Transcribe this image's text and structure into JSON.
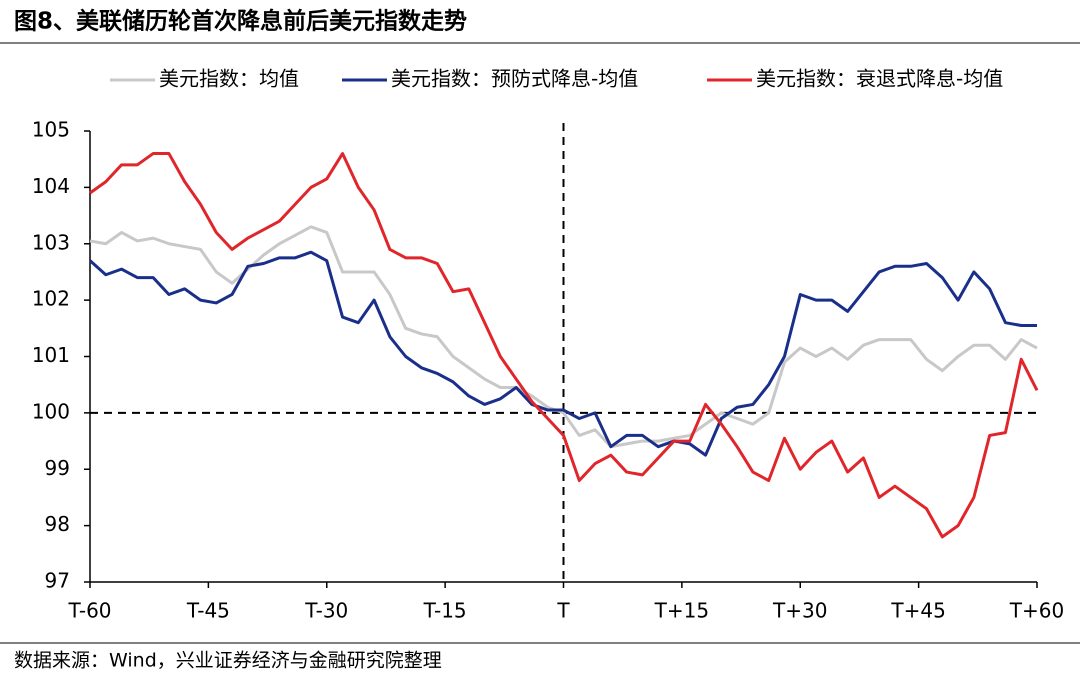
{
  "chart_data": {
    "type": "line",
    "title": "图8、美联储历轮首次降息前后美元指数走势",
    "source": "数据来源：Wind，兴业证券经济与金融研究院整理",
    "x": [
      -60,
      -58,
      -56,
      -54,
      -52,
      -50,
      -48,
      -46,
      -44,
      -42,
      -40,
      -38,
      -36,
      -34,
      -32,
      -30,
      -28,
      -26,
      -24,
      -22,
      -20,
      -18,
      -16,
      -14,
      -12,
      -10,
      -8,
      -6,
      -4,
      -2,
      0,
      2,
      4,
      6,
      8,
      10,
      12,
      14,
      16,
      18,
      20,
      22,
      24,
      26,
      28,
      30,
      32,
      34,
      36,
      38,
      40,
      42,
      44,
      46,
      48,
      50,
      52,
      54,
      56,
      58,
      60
    ],
    "series": [
      {
        "name": "美元指数：均值",
        "color": "#c8c8c8",
        "values": [
          103.05,
          103.0,
          103.2,
          103.05,
          103.1,
          103.0,
          102.95,
          102.9,
          102.5,
          102.3,
          102.55,
          102.8,
          103.0,
          103.15,
          103.3,
          103.2,
          102.5,
          102.5,
          102.5,
          102.1,
          101.5,
          101.4,
          101.35,
          101.0,
          100.8,
          100.6,
          100.45,
          100.45,
          100.3,
          100.1,
          100.0,
          99.6,
          99.7,
          99.4,
          99.45,
          99.5,
          99.5,
          99.55,
          99.6,
          99.8,
          100.0,
          99.9,
          99.8,
          100.0,
          100.9,
          101.15,
          101.0,
          101.15,
          100.95,
          101.2,
          101.3,
          101.3,
          101.3,
          100.95,
          100.75,
          101.0,
          101.2,
          101.2,
          100.95,
          101.3,
          101.15
        ]
      },
      {
        "name": "美元指数：预防式降息-均值",
        "color": "#1a2f8a",
        "values": [
          102.7,
          102.45,
          102.55,
          102.4,
          102.4,
          102.1,
          102.2,
          102.0,
          101.95,
          102.1,
          102.6,
          102.65,
          102.75,
          102.75,
          102.85,
          102.7,
          101.7,
          101.6,
          102.0,
          101.35,
          101.0,
          100.8,
          100.7,
          100.55,
          100.3,
          100.15,
          100.25,
          100.45,
          100.15,
          100.05,
          100.05,
          99.9,
          100.0,
          99.4,
          99.6,
          99.6,
          99.4,
          99.5,
          99.45,
          99.25,
          99.9,
          100.1,
          100.15,
          100.5,
          101.0,
          102.1,
          102.0,
          102.0,
          101.8,
          102.15,
          102.5,
          102.6,
          102.6,
          102.65,
          102.4,
          102.0,
          102.5,
          102.2,
          101.6,
          101.55,
          101.55
        ]
      },
      {
        "name": "美元指数：衰退式降息-均值",
        "color": "#e0262b",
        "values": [
          103.9,
          104.1,
          104.4,
          104.4,
          104.6,
          104.6,
          104.1,
          103.7,
          103.2,
          102.9,
          103.1,
          103.25,
          103.4,
          103.7,
          104.0,
          104.15,
          104.6,
          104.0,
          103.6,
          102.9,
          102.75,
          102.75,
          102.65,
          102.15,
          102.2,
          101.6,
          101.0,
          100.6,
          100.2,
          99.9,
          99.6,
          98.8,
          99.1,
          99.25,
          98.95,
          98.9,
          99.2,
          99.5,
          99.5,
          100.15,
          99.8,
          99.4,
          98.95,
          98.8,
          99.55,
          99.0,
          99.3,
          99.5,
          98.95,
          99.2,
          98.5,
          98.7,
          98.5,
          98.3,
          97.8,
          98.0,
          98.5,
          99.6,
          99.65,
          100.95,
          100.4
        ]
      }
    ],
    "xlim": [
      -60,
      60
    ],
    "xticks": [
      {
        "value": -60,
        "label": "T-60"
      },
      {
        "value": -45,
        "label": "T-45"
      },
      {
        "value": -30,
        "label": "T-30"
      },
      {
        "value": -15,
        "label": "T-15"
      },
      {
        "value": 0,
        "label": "T"
      },
      {
        "value": 15,
        "label": "T+15"
      },
      {
        "value": 30,
        "label": "T+30"
      },
      {
        "value": 45,
        "label": "T+45"
      },
      {
        "value": 60,
        "label": "T+60"
      }
    ],
    "ylim": [
      97,
      105
    ],
    "yticks": [
      97,
      98,
      99,
      100,
      101,
      102,
      103,
      104,
      105
    ],
    "reference_lines": {
      "x": 0,
      "y": 100
    }
  }
}
